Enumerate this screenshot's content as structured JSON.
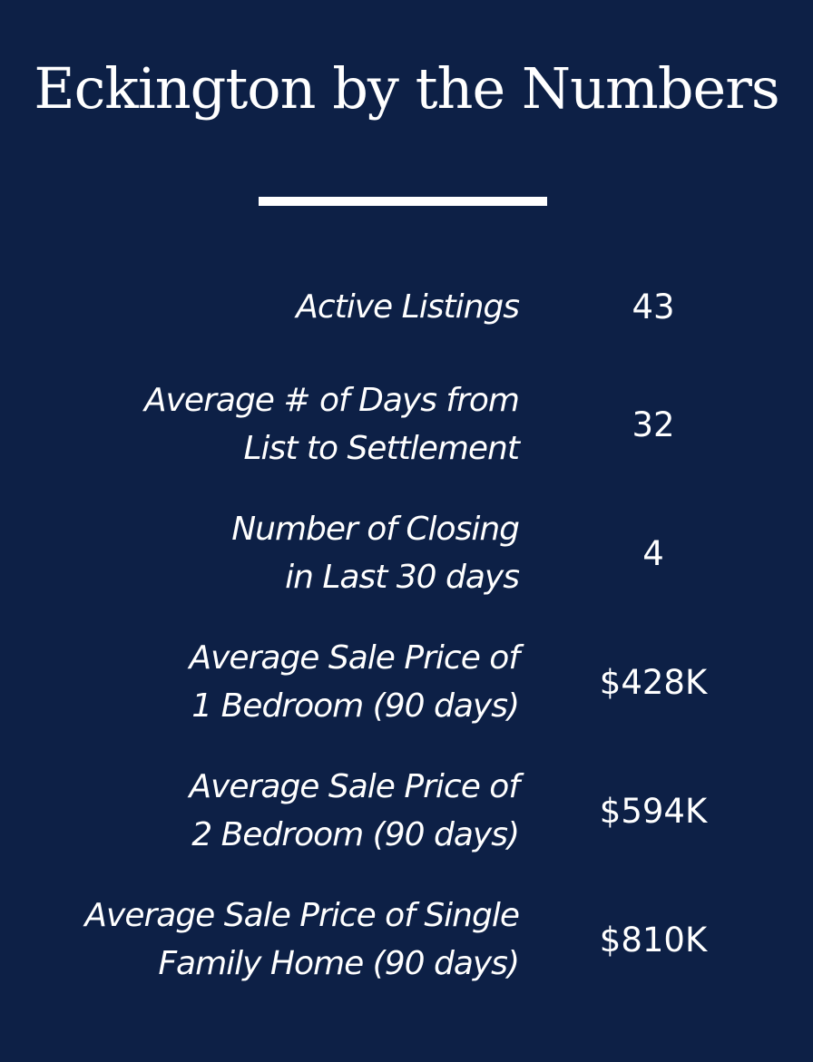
{
  "title": "Eckington by the Numbers",
  "stats": [
    {
      "label_lines": [
        "Active Listings"
      ],
      "value": "43"
    },
    {
      "label_lines": [
        "Average # of Days from",
        "List to Settlement"
      ],
      "value": "32"
    },
    {
      "label_lines": [
        "Number of Closing",
        "in Last 30 days"
      ],
      "value": "4"
    },
    {
      "label_lines": [
        "Average Sale Price of",
        "1 Bedroom (90 days)"
      ],
      "value": "$428K"
    },
    {
      "label_lines": [
        "Average Sale Price of",
        "2 Bedroom (90 days)"
      ],
      "value": "$594K"
    },
    {
      "label_lines": [
        "Average Sale Price of Single",
        "Family Home (90 days)"
      ],
      "value": "$810K"
    }
  ],
  "colors": {
    "background": "#0d2046",
    "text": "#ffffff"
  }
}
